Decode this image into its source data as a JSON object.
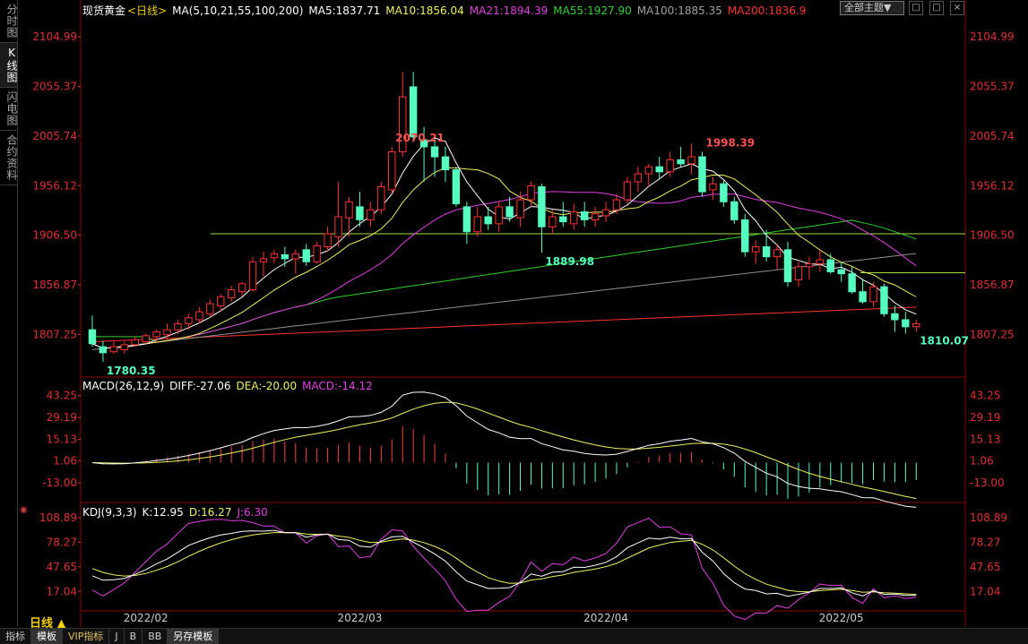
{
  "side_tabs": [
    "分时图",
    "K线图",
    "闪电图",
    "合约资料"
  ],
  "bottom_tabs": [
    "指标",
    "模板",
    "VIP指标",
    "J",
    "B",
    "BB",
    "另存模板"
  ],
  "period_label": "日线 ▲",
  "theme_label": "全部主题▼",
  "win_buttons": [
    "□",
    "□",
    "×"
  ],
  "main_legend": {
    "symbol": "现货黄金",
    "period": "<日线>",
    "ma_params": "MA(5,10,21,55,100,200)",
    "ma5": "MA5:1837.71",
    "ma10": "MA10:1856.04",
    "ma21": "MA21:1894.39",
    "ma55": "MA55:1927.90",
    "ma100": "MA100:1885.35",
    "ma200": "MA200:1836.9"
  },
  "macd_legend": {
    "name": "MACD(26,12,9)",
    "diff": "DIFF:-27.06",
    "dea": "DEA:-20.00",
    "macd": "MACD:-14.12"
  },
  "kdj_legend": {
    "name": "KDJ(9,3,3)",
    "k": "K:12.95",
    "d": "D:16.27",
    "j": "J:6.30"
  },
  "colors": {
    "up": "#ff3232",
    "down": "#54ffc0",
    "ma5": "#ffffff",
    "ma10": "#f0f060",
    "ma21": "#e040e0",
    "ma55": "#30d030",
    "ma100": "#909090",
    "ma200": "#ff3030",
    "axis": "#8b0000"
  },
  "chart_data": {
    "type": "candlestick",
    "price_ticks": [
      "2104.99",
      "2055.37",
      "2005.74",
      "1956.12",
      "1906.50",
      "1856.87",
      "1807.25"
    ],
    "price_range": [
      1770,
      2115
    ],
    "macd_ticks": [
      "43.25",
      "29.19",
      "15.13",
      "1.06",
      "-13.00"
    ],
    "macd_range": [
      -24,
      50
    ],
    "kdj_ticks": [
      "108.89",
      "78.27",
      "47.65",
      "17.04"
    ],
    "kdj_range": [
      -5,
      120
    ],
    "date_labels": [
      "2022/02",
      "2022/03",
      "2022/04",
      "2022/05"
    ],
    "date_label_index": [
      5,
      25,
      48,
      70
    ],
    "annotations": [
      {
        "text": "2070.21",
        "i": 28
      },
      {
        "text": "1998.39",
        "i": 57
      },
      {
        "text": "1889.98",
        "i": 42
      },
      {
        "text": "1780.35",
        "i": 1
      },
      {
        "text": "1810.07",
        "i": 77
      }
    ],
    "hlines": [
      1908,
      1869
    ],
    "ohlc": [
      [
        1812,
        1826,
        1795,
        1798
      ],
      [
        1795,
        1801,
        1780,
        1789
      ],
      [
        1790,
        1800,
        1788,
        1795
      ],
      [
        1792,
        1800,
        1788,
        1797
      ],
      [
        1797,
        1805,
        1795,
        1802
      ],
      [
        1800,
        1808,
        1797,
        1806
      ],
      [
        1805,
        1812,
        1800,
        1810
      ],
      [
        1807,
        1818,
        1802,
        1812
      ],
      [
        1812,
        1822,
        1808,
        1818
      ],
      [
        1818,
        1828,
        1812,
        1824
      ],
      [
        1822,
        1835,
        1818,
        1830
      ],
      [
        1828,
        1842,
        1824,
        1838
      ],
      [
        1836,
        1848,
        1830,
        1845
      ],
      [
        1844,
        1856,
        1840,
        1852
      ],
      [
        1850,
        1860,
        1845,
        1858
      ],
      [
        1852,
        1885,
        1850,
        1880
      ],
      [
        1880,
        1890,
        1865,
        1883
      ],
      [
        1884,
        1892,
        1878,
        1888
      ],
      [
        1887,
        1895,
        1875,
        1883
      ],
      [
        1883,
        1892,
        1868,
        1888
      ],
      [
        1892,
        1898,
        1876,
        1880
      ],
      [
        1880,
        1900,
        1878,
        1896
      ],
      [
        1895,
        1915,
        1890,
        1908
      ],
      [
        1905,
        1960,
        1895,
        1925
      ],
      [
        1924,
        1945,
        1905,
        1940
      ],
      [
        1935,
        1950,
        1915,
        1922
      ],
      [
        1922,
        1940,
        1915,
        1932
      ],
      [
        1932,
        1960,
        1928,
        1955
      ],
      [
        1952,
        1995,
        1948,
        1990
      ],
      [
        1990,
        2070,
        1985,
        2045
      ],
      [
        2055,
        2070,
        2000,
        2005
      ],
      [
        2002,
        2015,
        1960,
        1995
      ],
      [
        1995,
        2005,
        1965,
        1985
      ],
      [
        1985,
        1995,
        1960,
        1972
      ],
      [
        1972,
        1975,
        1935,
        1938
      ],
      [
        1935,
        1940,
        1898,
        1910
      ],
      [
        1910,
        1935,
        1905,
        1925
      ],
      [
        1925,
        1935,
        1912,
        1918
      ],
      [
        1918,
        1940,
        1910,
        1935
      ],
      [
        1935,
        1945,
        1920,
        1925
      ],
      [
        1924,
        1950,
        1915,
        1942
      ],
      [
        1942,
        1960,
        1935,
        1956
      ],
      [
        1955,
        1958,
        1889,
        1915
      ],
      [
        1915,
        1932,
        1908,
        1925
      ],
      [
        1925,
        1940,
        1915,
        1920
      ],
      [
        1918,
        1938,
        1912,
        1930
      ],
      [
        1930,
        1940,
        1915,
        1922
      ],
      [
        1922,
        1935,
        1915,
        1928
      ],
      [
        1926,
        1940,
        1920,
        1932
      ],
      [
        1932,
        1948,
        1928,
        1942
      ],
      [
        1942,
        1965,
        1938,
        1960
      ],
      [
        1960,
        1975,
        1950,
        1968
      ],
      [
        1968,
        1978,
        1955,
        1975
      ],
      [
        1975,
        1985,
        1962,
        1970
      ],
      [
        1970,
        1990,
        1965,
        1982
      ],
      [
        1982,
        1995,
        1975,
        1978
      ],
      [
        1978,
        1998,
        1968,
        1985
      ],
      [
        1985,
        1990,
        1945,
        1950
      ],
      [
        1952,
        1965,
        1942,
        1958
      ],
      [
        1958,
        1962,
        1935,
        1940
      ],
      [
        1940,
        1945,
        1918,
        1922
      ],
      [
        1922,
        1928,
        1885,
        1890
      ],
      [
        1890,
        1902,
        1878,
        1895
      ],
      [
        1895,
        1912,
        1880,
        1885
      ],
      [
        1885,
        1898,
        1872,
        1892
      ],
      [
        1892,
        1900,
        1855,
        1860
      ],
      [
        1862,
        1880,
        1855,
        1875
      ],
      [
        1875,
        1885,
        1862,
        1878
      ],
      [
        1878,
        1892,
        1870,
        1882
      ],
      [
        1882,
        1888,
        1868,
        1870
      ],
      [
        1872,
        1880,
        1860,
        1868
      ],
      [
        1868,
        1875,
        1848,
        1850
      ],
      [
        1850,
        1862,
        1838,
        1840
      ],
      [
        1840,
        1860,
        1835,
        1855
      ],
      [
        1855,
        1858,
        1825,
        1828
      ],
      [
        1828,
        1836,
        1810,
        1822
      ],
      [
        1822,
        1830,
        1808,
        1815
      ],
      [
        1815,
        1822,
        1810,
        1818
      ]
    ]
  }
}
